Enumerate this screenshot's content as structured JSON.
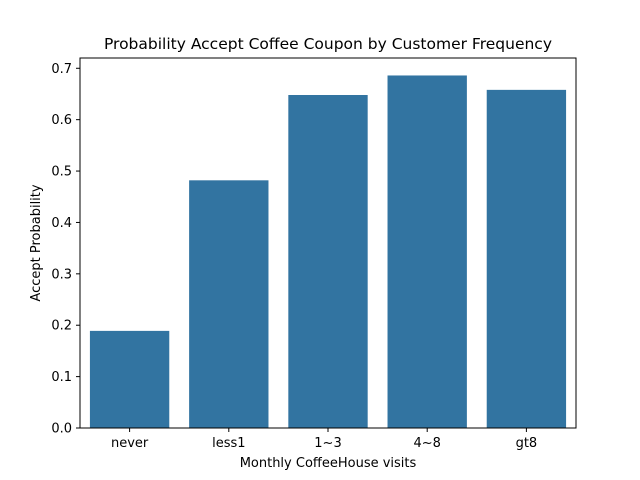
{
  "chart_data": {
    "type": "bar",
    "title": "Probability Accept Coffee Coupon by Customer Frequency",
    "xlabel": "Monthly CoffeeHouse visits",
    "ylabel": "Accept Probability",
    "categories": [
      "never",
      "less1",
      "1~3",
      "4~8",
      "gt8"
    ],
    "values": [
      0.189,
      0.482,
      0.648,
      0.686,
      0.658
    ],
    "ylim": [
      0,
      0.72
    ],
    "yticks": [
      "0.0",
      "0.1",
      "0.2",
      "0.3",
      "0.4",
      "0.5",
      "0.6",
      "0.7"
    ],
    "bar_color": "#3274a1",
    "grid": false,
    "legend": "none"
  }
}
